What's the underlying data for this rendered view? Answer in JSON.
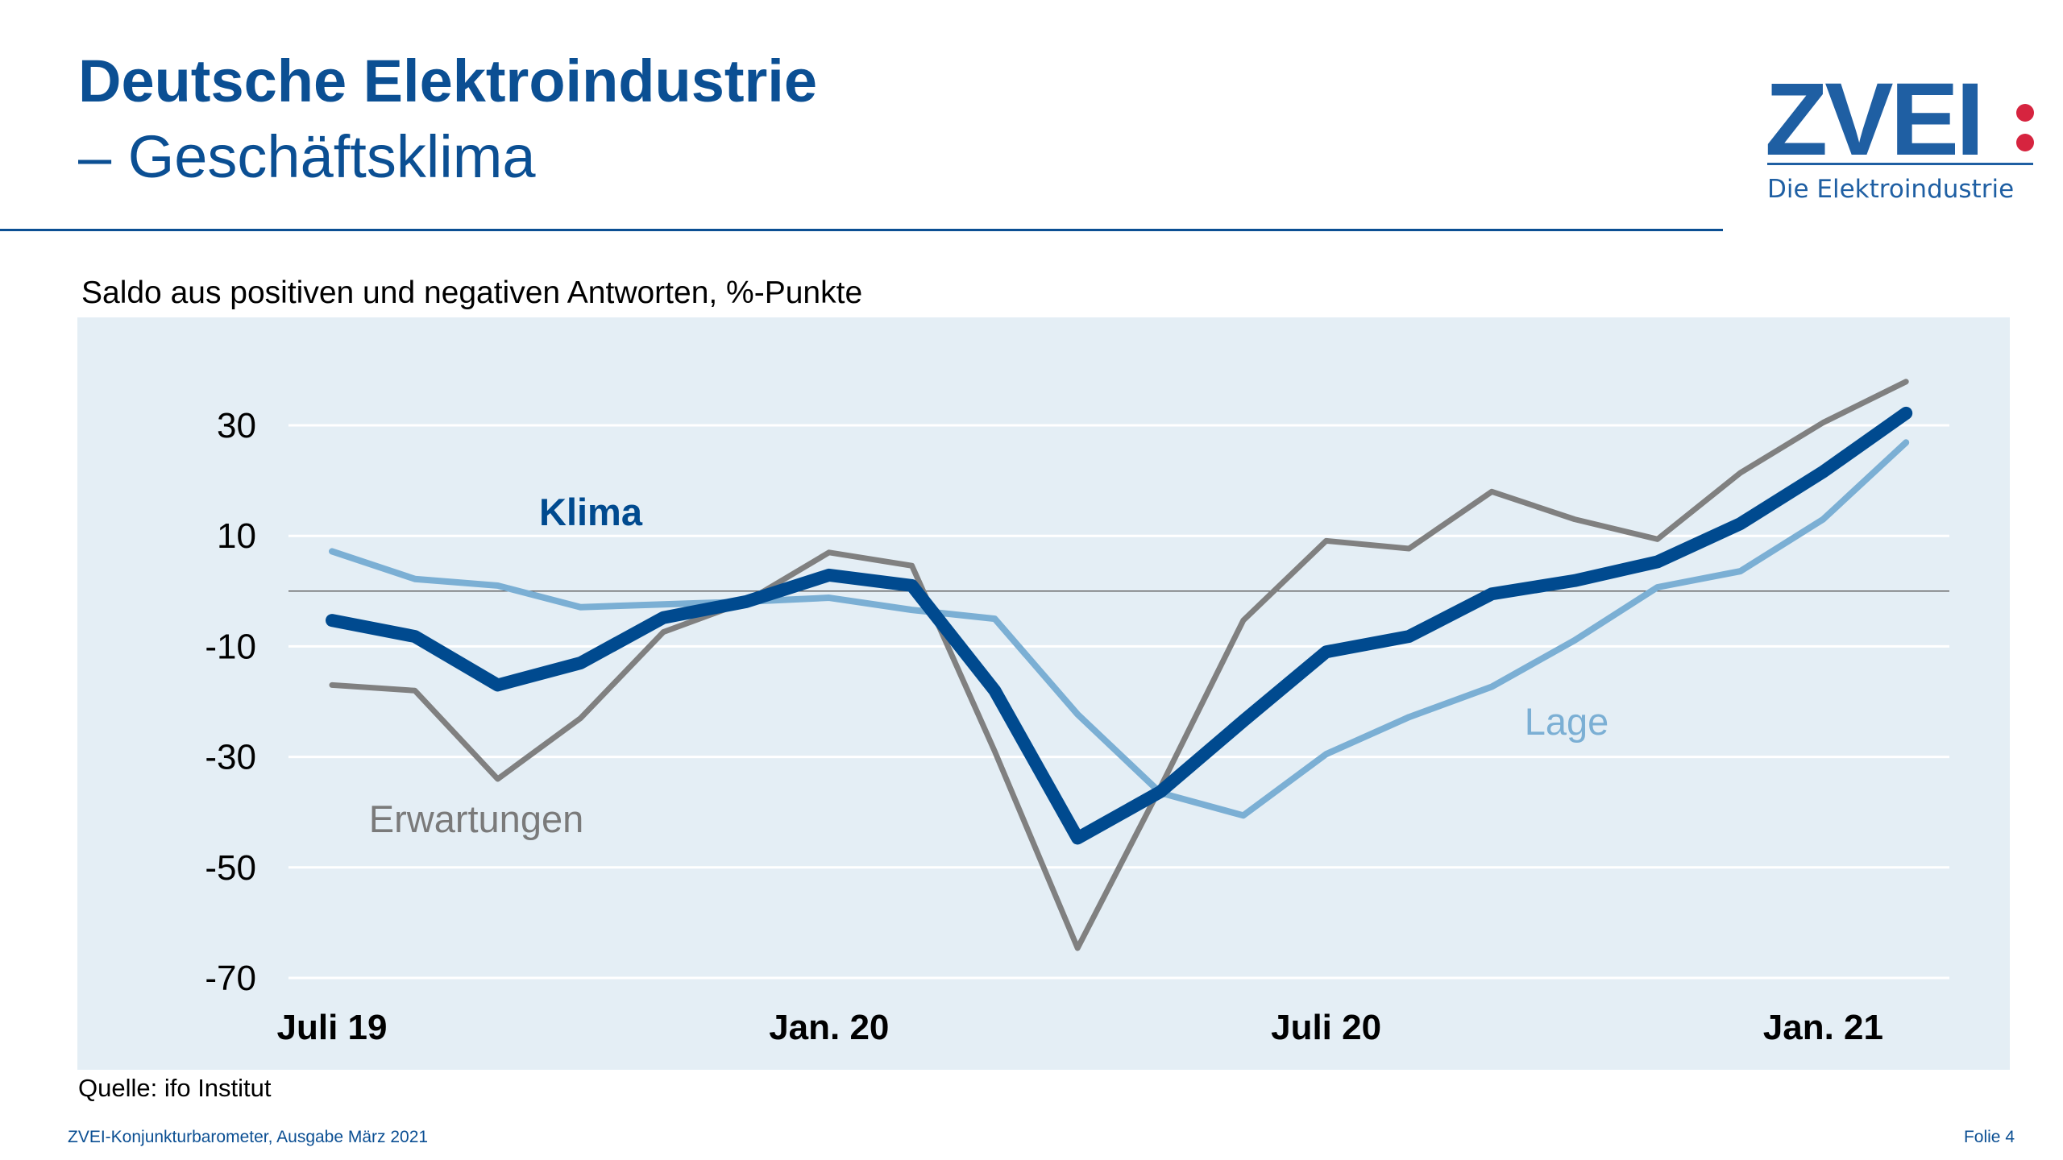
{
  "header": {
    "title": "Deutsche Elektroindustrie",
    "subtitle": "– Geschäftsklima",
    "logo": {
      "text": "ZVEI:",
      "tagline": "Die Elektroindustrie",
      "colors": {
        "blue": "#1f5fa3",
        "red": "#d6243f"
      }
    }
  },
  "footer": {
    "source": "Quelle: ifo Institut",
    "publication": "ZVEI-Konjunkturbarometer, Ausgabe März 2021",
    "slide": "Folie 4"
  },
  "chart_data": {
    "type": "line",
    "title": "",
    "subtitle": "Saldo aus positiven und negativen Antworten, %-Punkte",
    "ylim": [
      -70,
      30
    ],
    "yticks": [
      30,
      10,
      -10,
      -30,
      -50,
      -70
    ],
    "grid": true,
    "zero_line": true,
    "background": "#e4eef5",
    "x": [
      "2019-07",
      "2019-08",
      "2019-09",
      "2019-10",
      "2019-11",
      "2019-12",
      "2020-01",
      "2020-02",
      "2020-03",
      "2020-04",
      "2020-05",
      "2020-06",
      "2020-07",
      "2020-08",
      "2020-09",
      "2020-10",
      "2020-11",
      "2020-12",
      "2021-01",
      "2021-02"
    ],
    "xticks": [
      {
        "x": "2019-07",
        "label": "Juli 19"
      },
      {
        "x": "2020-01",
        "label": "Jan. 20"
      },
      {
        "x": "2020-07",
        "label": "Juli 20"
      },
      {
        "x": "2021-01",
        "label": "Jan. 21"
      }
    ],
    "series": [
      {
        "name": "Erwartungen",
        "color": "#808080",
        "values": [
          -17,
          -18,
          -34,
          -23,
          -7.4,
          -1.9,
          7,
          4.6,
          -29,
          -64.6,
          -35.5,
          -5.3,
          9.1,
          7.7,
          18,
          13,
          9.4,
          21.4,
          30.5,
          37.9
        ]
      },
      {
        "name": "Lage",
        "color": "#7bafd4",
        "values": [
          7.2,
          2.2,
          1,
          -2.9,
          -2.4,
          -1.9,
          -1.2,
          -3.4,
          -5,
          -22.3,
          -36.5,
          -40.6,
          -29.5,
          -22.8,
          -17.3,
          -8.9,
          0.7,
          3.6,
          13,
          26.9
        ]
      },
      {
        "name": "Klima",
        "color": "#004a8f",
        "values": [
          -5.3,
          -8.2,
          -17,
          -13,
          -4.8,
          -1.9,
          2.9,
          1,
          -18,
          -44.7,
          -36.3,
          -23.5,
          -11,
          -8.2,
          -0.5,
          1.9,
          5.3,
          12.2,
          21.6,
          32.2
        ]
      }
    ]
  }
}
